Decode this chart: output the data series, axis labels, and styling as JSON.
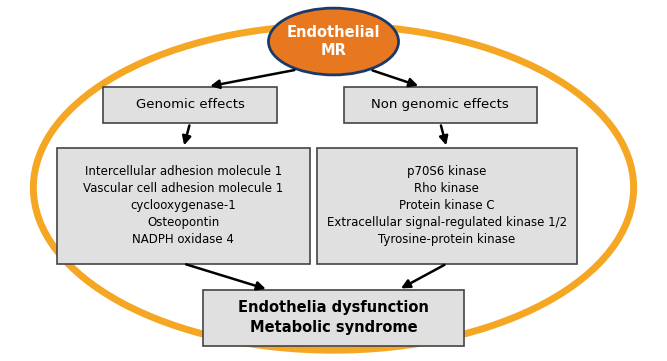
{
  "bg_color": "#ffffff",
  "oval_color": "#e87820",
  "oval_border": "#1a3a6b",
  "oval_text": "Endothelial\nMR",
  "oval_text_color": "#ffffff",
  "big_ellipse_color": "#f5a623",
  "big_ellipse_lw": 5,
  "genomic_box_text": "Genomic effects",
  "non_genomic_box_text": "Non genomic effects",
  "genomic_detail_text": "Intercellular adhesion molecule 1\nVascular cell adhesion molecule 1\ncyclooxygenase-1\nOsteopontin\nNADPH oxidase 4",
  "non_genomic_detail_text": "p70S6 kinase\nRho kinase\nProtein kinase C\nExtracellular signal-regulated kinase 1/2\nTyrosine-protein kinase",
  "bottom_box_text": "Endothelia dysfunction\nMetabolic syndrome",
  "box_bg": "#e0e0e0",
  "box_border": "#444444",
  "arrow_color": "#000000",
  "arrow_lw": 1.8,
  "font_size_oval": 10.5,
  "font_size_label": 9.5,
  "font_size_detail": 8.5,
  "font_size_bottom": 10.5,
  "fig_width": 6.67,
  "fig_height": 3.61,
  "dpi": 100
}
